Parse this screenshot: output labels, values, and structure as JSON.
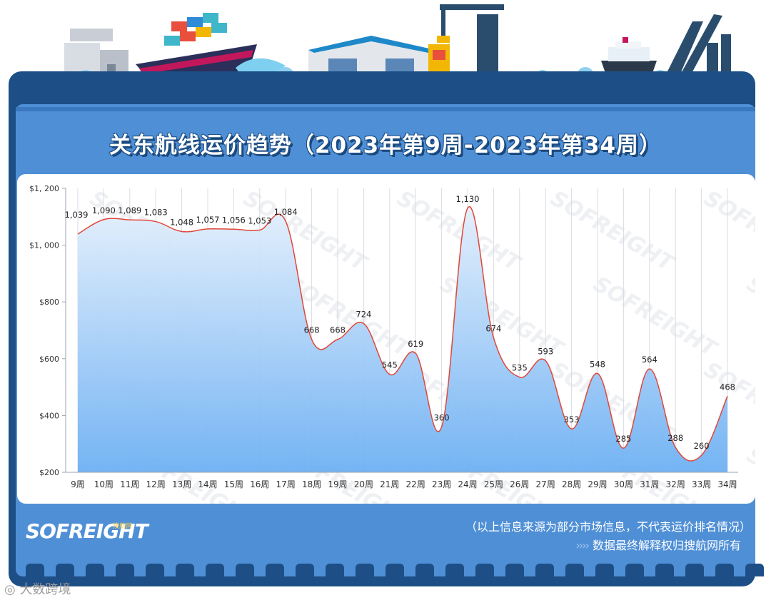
{
  "title": "关东航线运价趋势（2023年第9周-2023年第34周）",
  "logo": {
    "text": "SOFREIGHT",
    "sub": "搜航网"
  },
  "footer": {
    "note": "（以上信息来源为部分市场信息，不代表运价排名情况）",
    "chevrons": "››››",
    "rights": "数据最终解释权归搜航网所有"
  },
  "credit": "大数跨境",
  "colors": {
    "line": "#e0473a",
    "area_top": "#dbeafb",
    "area_bottom": "#6fb2f4",
    "panel": "#1d4f86",
    "panel_inner": "#4f8fd6"
  },
  "chart_data": {
    "type": "area",
    "categories": [
      "9周",
      "10周",
      "11周",
      "12周",
      "13周",
      "14周",
      "15周",
      "16周",
      "17周",
      "18周",
      "19周",
      "20周",
      "21周",
      "22周",
      "23周",
      "24周",
      "25周",
      "26周",
      "27周",
      "28周",
      "29周",
      "30周",
      "31周",
      "32周",
      "33周",
      "34周"
    ],
    "values": [
      1039,
      1090,
      1089,
      1083,
      1048,
      1057,
      1056,
      1053,
      1084,
      668,
      668,
      724,
      545,
      619,
      360,
      1130,
      674,
      535,
      593,
      353,
      548,
      285,
      564,
      288,
      260,
      468
    ],
    "data_labels": [
      "1,039",
      "1,090",
      "1,089",
      "1,083",
      "1,048",
      "1,057",
      "1,056",
      "1,053",
      "1,084",
      "668",
      "668",
      "724",
      "545",
      "619",
      "360",
      "1,130",
      "674",
      "535",
      "593",
      "353",
      "548",
      "285",
      "564",
      "288",
      "260",
      "468"
    ],
    "ylim": [
      200,
      1200
    ],
    "yticks": [
      "$1, 200",
      "$1, 000",
      "$800",
      "$600",
      "$400",
      "$200"
    ],
    "ytick_values": [
      1200,
      1000,
      800,
      600,
      400,
      200
    ],
    "grid": "vertical",
    "watermark": "SOFREIGHT"
  }
}
